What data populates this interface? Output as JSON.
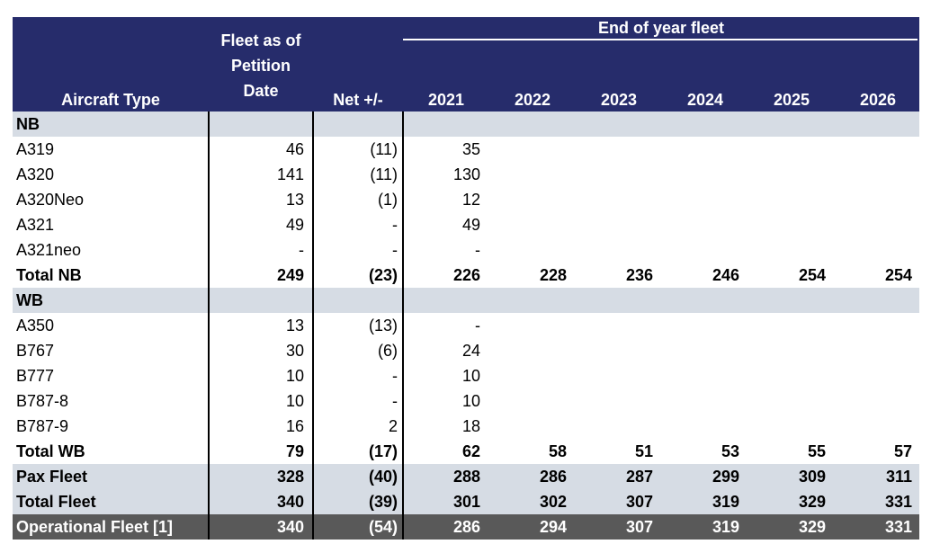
{
  "header": {
    "aircraft_type": "Aircraft Type",
    "fleet_petition": [
      "Fleet as of",
      "Petition",
      "Date"
    ],
    "net": "Net +/-",
    "end_of_year": "End of year fleet",
    "years": [
      "2021",
      "2022",
      "2023",
      "2024",
      "2025",
      "2026"
    ]
  },
  "rows": [
    {
      "label": "NB",
      "type": "section",
      "petition": "",
      "net": "",
      "years": [
        "",
        "",
        "",
        "",
        "",
        ""
      ]
    },
    {
      "label": "A319",
      "type": "data",
      "petition": "46",
      "net": "(11)",
      "years": [
        "35",
        "",
        "",
        "",
        "",
        ""
      ]
    },
    {
      "label": "A320",
      "type": "data",
      "petition": "141",
      "net": "(11)",
      "years": [
        "130",
        "",
        "",
        "",
        "",
        ""
      ]
    },
    {
      "label": "A320Neo",
      "type": "data",
      "petition": "13",
      "net": "(1)",
      "years": [
        "12",
        "",
        "",
        "",
        "",
        ""
      ]
    },
    {
      "label": "A321",
      "type": "data",
      "petition": "49",
      "net": "-",
      "years": [
        "49",
        "",
        "",
        "",
        "",
        ""
      ]
    },
    {
      "label": "A321neo",
      "type": "data",
      "petition": "-",
      "net": "-",
      "years": [
        "-",
        "",
        "",
        "",
        "",
        ""
      ]
    },
    {
      "label": "Total NB",
      "type": "total",
      "petition": "249",
      "net": "(23)",
      "years": [
        "226",
        "228",
        "236",
        "246",
        "254",
        "254"
      ]
    },
    {
      "label": "WB",
      "type": "section",
      "petition": "",
      "net": "",
      "years": [
        "",
        "",
        "",
        "",
        "",
        ""
      ]
    },
    {
      "label": "A350",
      "type": "data",
      "petition": "13",
      "net": "(13)",
      "years": [
        "-",
        "",
        "",
        "",
        "",
        ""
      ]
    },
    {
      "label": "B767",
      "type": "data",
      "petition": "30",
      "net": "(6)",
      "years": [
        "24",
        "",
        "",
        "",
        "",
        ""
      ]
    },
    {
      "label": "B777",
      "type": "data",
      "petition": "10",
      "net": "-",
      "years": [
        "10",
        "",
        "",
        "",
        "",
        ""
      ]
    },
    {
      "label": "B787-8",
      "type": "data",
      "petition": "10",
      "net": "-",
      "years": [
        "10",
        "",
        "",
        "",
        "",
        ""
      ]
    },
    {
      "label": "B787-9",
      "type": "data",
      "petition": "16",
      "net": "2",
      "years": [
        "18",
        "",
        "",
        "",
        "",
        ""
      ]
    },
    {
      "label": "Total WB",
      "type": "total",
      "petition": "79",
      "net": "(17)",
      "years": [
        "62",
        "58",
        "51",
        "53",
        "55",
        "57"
      ]
    },
    {
      "label": "Pax Fleet",
      "type": "shaded",
      "petition": "328",
      "net": "(40)",
      "years": [
        "288",
        "286",
        "287",
        "299",
        "309",
        "311"
      ]
    },
    {
      "label": "Total Fleet",
      "type": "shaded",
      "petition": "340",
      "net": "(39)",
      "years": [
        "301",
        "302",
        "307",
        "319",
        "329",
        "331"
      ]
    },
    {
      "label": "Operational Fleet [1]",
      "type": "op",
      "petition": "340",
      "net": "(54)",
      "years": [
        "286",
        "294",
        "307",
        "319",
        "329",
        "331"
      ]
    }
  ]
}
